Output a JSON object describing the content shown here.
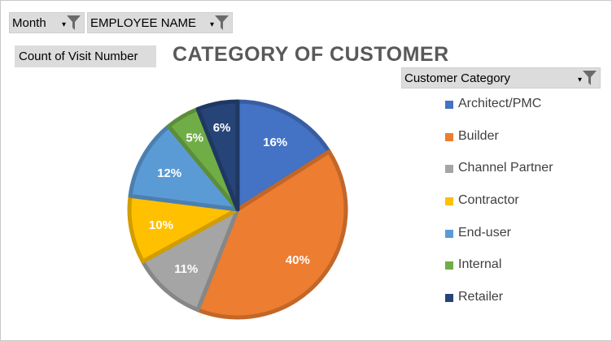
{
  "filters": {
    "month_label": "Month",
    "employee_label": "EMPLOYEE NAME"
  },
  "value_field": "Count of Visit Number",
  "legend_field": "Customer Category",
  "icons": {
    "filter": "filter-funnel-icon",
    "dropdown": "dropdown-arrow-icon"
  },
  "chart_data": {
    "type": "pie",
    "title": "CATEGORY OF CUSTOMER",
    "categories": [
      "Architect/PMC",
      "Builder",
      "Channel Partner",
      "Contractor",
      "End-user",
      "Internal",
      "Retailer"
    ],
    "values": [
      16,
      40,
      11,
      10,
      12,
      5,
      6
    ],
    "labels": [
      "16%",
      "40%",
      "11%",
      "10%",
      "12%",
      "5%",
      "6%"
    ],
    "colors": [
      "#4472C4",
      "#ED7D31",
      "#A5A5A5",
      "#FFC000",
      "#5B9BD5",
      "#70AD47",
      "#264478"
    ],
    "legend_position": "right",
    "start_angle_deg": 0,
    "direction": "clockwise"
  }
}
